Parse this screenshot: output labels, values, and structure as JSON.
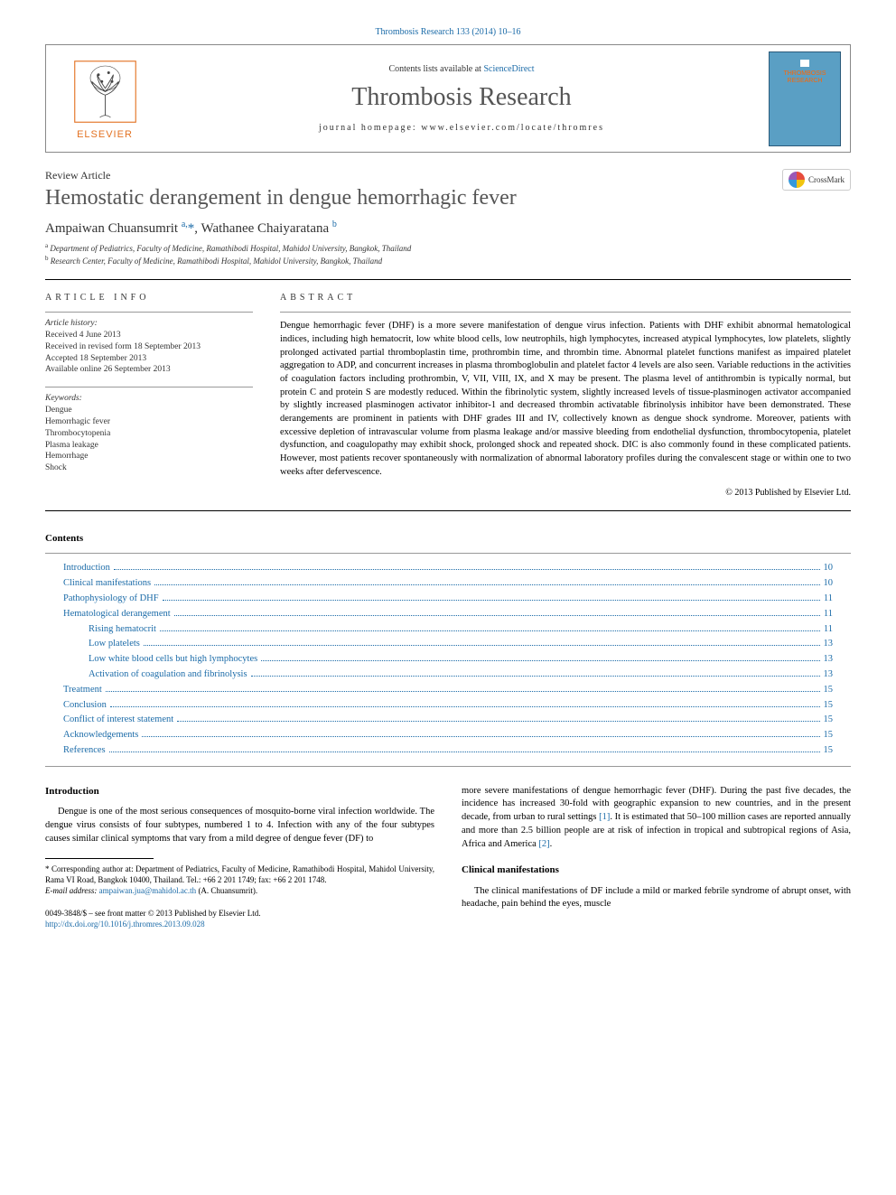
{
  "top_citation": "Thrombosis Research 133 (2014) 10–16",
  "header": {
    "elsevier_label": "ELSEVIER",
    "contents_line_prefix": "Contents lists available at ",
    "contents_line_link": "ScienceDirect",
    "journal_name": "Thrombosis Research",
    "homepage_prefix": "journal homepage: ",
    "homepage_url": "www.elsevier.com/locate/thromres",
    "cover_text": "THROMBOSIS RESEARCH"
  },
  "article": {
    "type": "Review Article",
    "title": "Hemostatic derangement in dengue hemorrhagic fever",
    "crossmark": "CrossMark",
    "authors_html": "Ampaiwan Chuansumrit <sup>a,</sup><span class='star'>*</span>, Wathanee Chaiyaratana <sup>b</sup>",
    "author1": "Ampaiwan Chuansumrit",
    "author1_sup": "a,",
    "author2": "Wathanee Chaiyaratana",
    "author2_sup": "b",
    "affiliations": {
      "a_sup": "a",
      "a": " Department of Pediatrics, Faculty of Medicine, Ramathibodi Hospital, Mahidol University, Bangkok, Thailand",
      "b_sup": "b",
      "b": " Research Center, Faculty of Medicine, Ramathibodi Hospital, Mahidol University, Bangkok, Thailand"
    }
  },
  "article_info": {
    "heading": "article info",
    "history_label": "Article history:",
    "received": "Received 4 June 2013",
    "revised": "Received in revised form 18 September 2013",
    "accepted": "Accepted 18 September 2013",
    "online": "Available online 26 September 2013",
    "keywords_label": "Keywords:",
    "keywords": [
      "Dengue",
      "Hemorrhagic fever",
      "Thrombocytopenia",
      "Plasma leakage",
      "Hemorrhage",
      "Shock"
    ]
  },
  "abstract": {
    "heading": "abstract",
    "text": "Dengue hemorrhagic fever (DHF) is a more severe manifestation of dengue virus infection. Patients with DHF exhibit abnormal hematological indices, including high hematocrit, low white blood cells, low neutrophils, high lymphocytes, increased atypical lymphocytes, low platelets, slightly prolonged activated partial thromboplastin time, prothrombin time, and thrombin time. Abnormal platelet functions manifest as impaired platelet aggregation to ADP, and concurrent increases in plasma thromboglobulin and platelet factor 4 levels are also seen. Variable reductions in the activities of coagulation factors including prothrombin, V, VII, VIII, IX, and X may be present. The plasma level of antithrombin is typically normal, but protein C and protein S are modestly reduced. Within the fibrinolytic system, slightly increased levels of tissue-plasminogen activator accompanied by slightly increased plasminogen activator inhibitor-1 and decreased thrombin activatable fibrinolysis inhibitor have been demonstrated. These derangements are prominent in patients with DHF grades III and IV, collectively known as dengue shock syndrome. Moreover, patients with excessive depletion of intravascular volume from plasma leakage and/or massive bleeding from endothelial dysfunction, thrombocytopenia, platelet dysfunction, and coagulopathy may exhibit shock, prolonged shock and repeated shock. DIC is also commonly found in these complicated patients. However, most patients recover spontaneously with normalization of abnormal laboratory profiles during the convalescent stage or within one to two weeks after defervescence.",
    "copyright": "© 2013 Published by Elsevier Ltd."
  },
  "contents": {
    "heading": "Contents",
    "items": [
      {
        "title": "Introduction",
        "page": "10",
        "indent": 0
      },
      {
        "title": "Clinical manifestations",
        "page": "10",
        "indent": 0
      },
      {
        "title": "Pathophysiology of DHF",
        "page": "11",
        "indent": 0
      },
      {
        "title": "Hematological derangement",
        "page": "11",
        "indent": 0
      },
      {
        "title": "Rising hematocrit",
        "page": "11",
        "indent": 1
      },
      {
        "title": "Low platelets",
        "page": "13",
        "indent": 1
      },
      {
        "title": "Low white blood cells but high lymphocytes",
        "page": "13",
        "indent": 1
      },
      {
        "title": "Activation of coagulation and fibrinolysis",
        "page": "13",
        "indent": 1
      },
      {
        "title": "Treatment",
        "page": "15",
        "indent": 0
      },
      {
        "title": "Conclusion",
        "page": "15",
        "indent": 0
      },
      {
        "title": "Conflict of interest statement",
        "page": "15",
        "indent": 0
      },
      {
        "title": "Acknowledgements",
        "page": "15",
        "indent": 0
      },
      {
        "title": "References",
        "page": "15",
        "indent": 0
      }
    ]
  },
  "body": {
    "intro_heading": "Introduction",
    "intro_p1": "Dengue is one of the most serious consequences of mosquito-borne viral infection worldwide. The dengue virus consists of four subtypes, numbered 1 to 4. Infection with any of the four subtypes causes similar clinical symptoms that vary from a mild degree of dengue fever (DF) to",
    "col2_p1_a": "more severe manifestations of dengue hemorrhagic fever (DHF). During the past five decades, the incidence has increased 30-fold with geographic expansion to new countries, and in the present decade, from urban to rural settings ",
    "col2_ref1": "[1]",
    "col2_p1_b": ". It is estimated that 50–100 million cases are reported annually and more than 2.5 billion people are at risk of infection in tropical and subtropical regions of Asia, Africa and America ",
    "col2_ref2": "[2]",
    "col2_p1_c": ".",
    "clinical_heading": "Clinical manifestations",
    "clinical_p1": "The clinical manifestations of DF include a mild or marked febrile syndrome of abrupt onset, with headache, pain behind the eyes, muscle"
  },
  "footnotes": {
    "corr_marker": "*",
    "corr_text": " Corresponding author at: Department of Pediatrics, Faculty of Medicine, Ramathibodi Hospital, Mahidol University, Rama VI Road, Bangkok 10400, Thailand. Tel.: +66 2 201 1749; fax: +66 2 201 1748.",
    "email_label": "E-mail address: ",
    "email": "ampaiwan.jua@mahidol.ac.th",
    "email_suffix": " (A. Chuansumrit)."
  },
  "bottom": {
    "issn_line": "0049-3848/$ – see front matter © 2013 Published by Elsevier Ltd.",
    "doi": "http://dx.doi.org/10.1016/j.thromres.2013.09.028"
  },
  "colors": {
    "link": "#1b6ba8",
    "elsevier_orange": "#e37222",
    "cover_bg": "#5a9fc4"
  }
}
